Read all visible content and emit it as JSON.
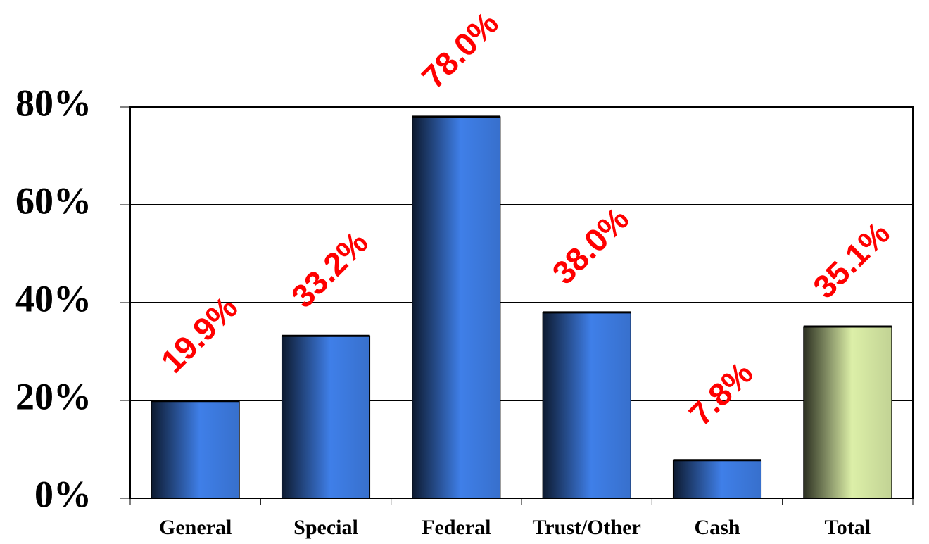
{
  "chart_data": {
    "type": "bar",
    "categories": [
      "General",
      "Special",
      "Federal",
      "Trust/Other",
      "Cash",
      "Total"
    ],
    "values": [
      19.9,
      33.2,
      78.0,
      38.0,
      7.8,
      35.1
    ],
    "value_labels": [
      "19.9%",
      "33.2%",
      "78.0%",
      "38.0%",
      "7.8%",
      "35.1%"
    ],
    "colors": [
      "#3f7fe8",
      "#3f7fe8",
      "#3f7fe8",
      "#3f7fe8",
      "#3f7fe8",
      "#dcefa8"
    ],
    "ylim": [
      0,
      80
    ],
    "yticks": [
      {
        "value": 0,
        "label": "0%"
      },
      {
        "value": 20,
        "label": "20%"
      },
      {
        "value": 40,
        "label": "40%"
      },
      {
        "value": 60,
        "label": "60%"
      },
      {
        "value": 80,
        "label": "80%"
      }
    ],
    "grid": true
  }
}
